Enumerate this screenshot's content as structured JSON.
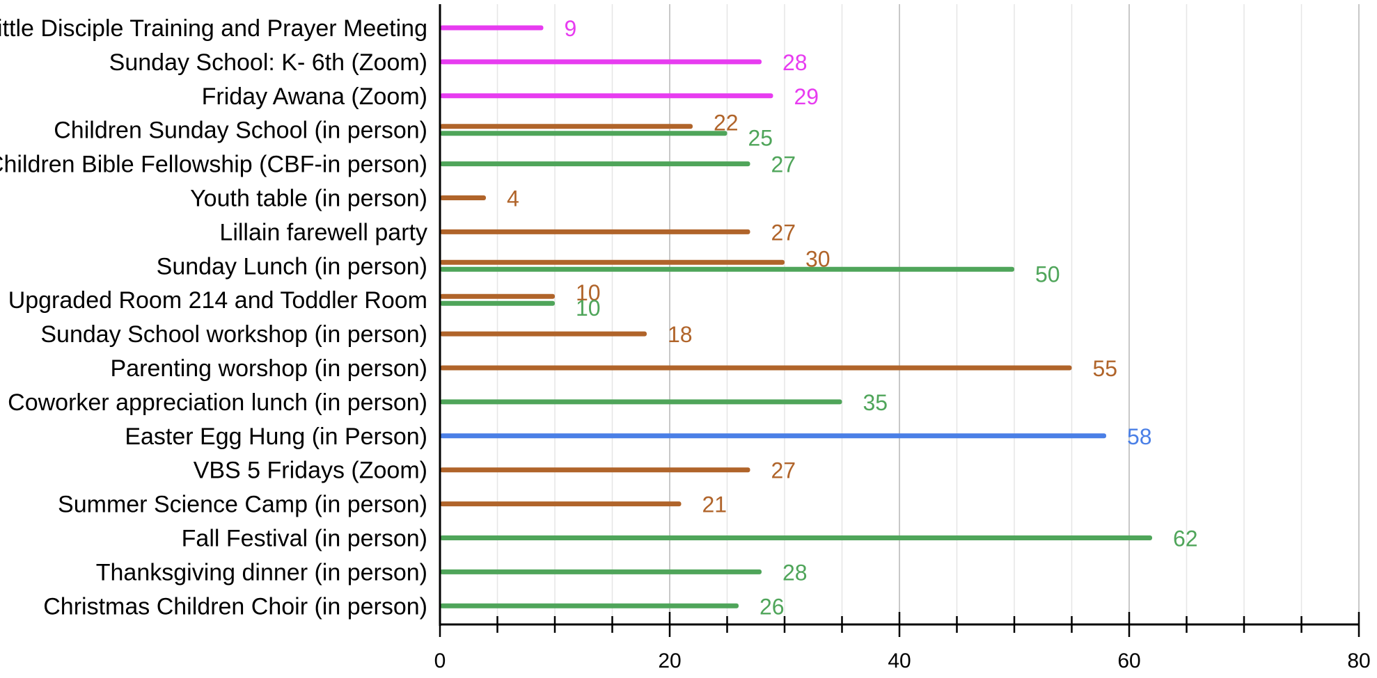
{
  "colors": {
    "online": "#e73cf0",
    "in_person_a": "#b0642a",
    "in_person_b": "#4fa55a",
    "highlight": "#4a7fe6"
  },
  "chart_data": {
    "type": "bar",
    "orientation": "horizontal",
    "title": "",
    "xlabel": "",
    "ylabel": "",
    "xlim": [
      0,
      80
    ],
    "x_ticks": [
      0,
      20,
      40,
      60,
      80
    ],
    "x_minor_step": 5,
    "grid": true,
    "legend": "none",
    "categories": [
      "Little Disciple Training and Prayer Meeting",
      "Sunday School: K- 6th (Zoom)",
      "Friday Awana (Zoom)",
      "Children Sunday School (in person)",
      "Children Bible Fellowship (CBF-in person)",
      "Youth table (in person)",
      "Lillain farewell party",
      "Sunday Lunch (in person)",
      "Upgraded Room 214 and Toddler Room",
      "Sunday School workshop (in person)",
      "Parenting worshop (in person)",
      "Coworker appreciation lunch (in person)",
      "Easter Egg Hung (in Person)",
      "VBS 5 Fridays (Zoom)",
      "Summer Science Camp (in person)",
      "Fall Festival (in person)",
      "Thanksgiving dinner (in person)",
      "Christmas Children Choir (in person)"
    ],
    "series": [
      {
        "color": "#e73cf0",
        "values": [
          9,
          28,
          29,
          null,
          null,
          null,
          null,
          null,
          null,
          null,
          null,
          null,
          null,
          null,
          null,
          null,
          null,
          null
        ]
      },
      {
        "color": "#b0642a",
        "values": [
          null,
          null,
          null,
          22,
          null,
          4,
          27,
          30,
          10,
          18,
          55,
          null,
          null,
          27,
          21,
          null,
          null,
          null
        ]
      },
      {
        "color": "#4fa55a",
        "values": [
          null,
          null,
          null,
          25,
          27,
          null,
          null,
          50,
          10,
          null,
          null,
          35,
          null,
          null,
          null,
          62,
          28,
          26
        ]
      },
      {
        "color": "#4a7fe6",
        "values": [
          null,
          null,
          null,
          null,
          null,
          null,
          null,
          null,
          null,
          null,
          null,
          null,
          58,
          null,
          null,
          null,
          null,
          null
        ]
      }
    ]
  }
}
